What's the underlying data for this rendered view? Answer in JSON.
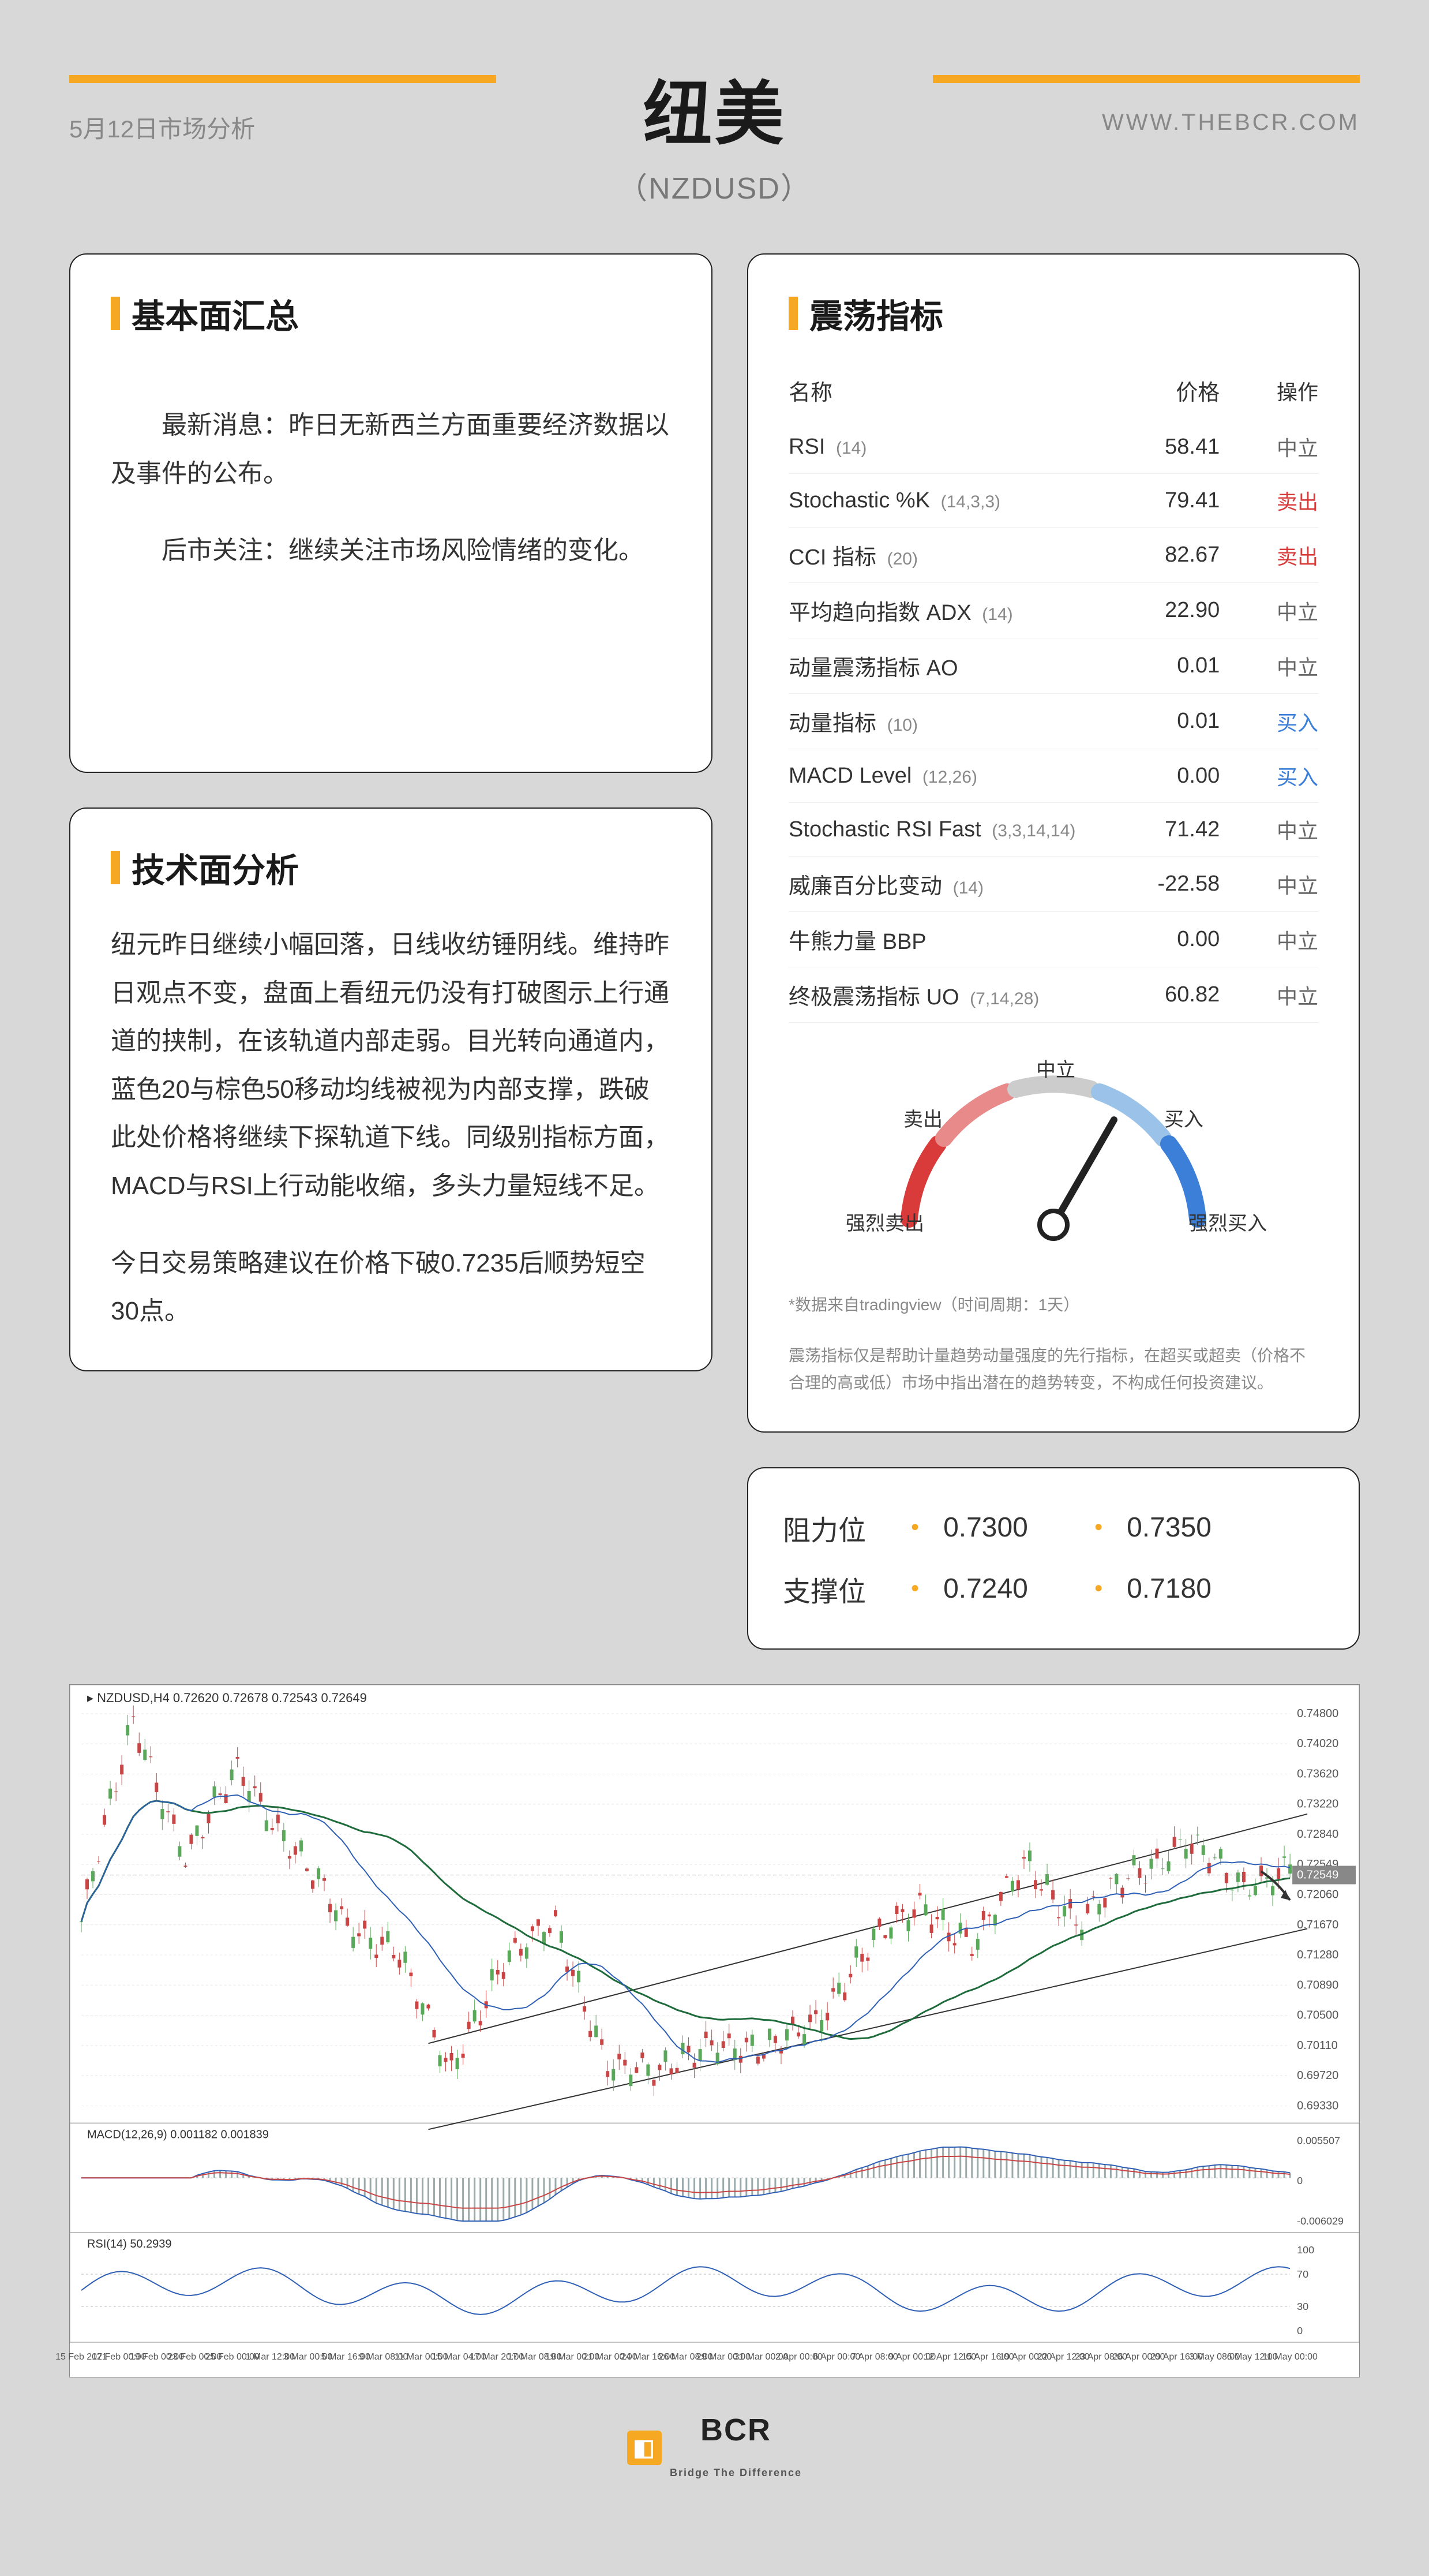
{
  "header": {
    "title": "纽美",
    "subtitle": "（NZDUSD）",
    "date": "5月12日市场分析",
    "url": "WWW.THEBCR.COM"
  },
  "fundamentals": {
    "title": "基本面汇总",
    "p1": "最新消息：昨日无新西兰方面重要经济数据以及事件的公布。",
    "p2": "后市关注：继续关注市场风险情绪的变化。"
  },
  "technical": {
    "title": "技术面分析",
    "p1": "纽元昨日继续小幅回落，日线收纺锤阴线。维持昨日观点不变，盘面上看纽元仍没有打破图示上行通道的挟制，在该轨道内部走弱。目光转向通道内，蓝色20与棕色50移动均线被视为内部支撑，跌破此处价格将继续下探轨道下线。同级别指标方面，MACD与RSI上行动能收缩，多头力量短线不足。",
    "p2": "今日交易策略建议在价格下破0.7235后顺势短空30点。"
  },
  "oscillators": {
    "title": "震荡指标",
    "headers": {
      "name": "名称",
      "price": "价格",
      "action": "操作"
    },
    "rows": [
      {
        "name": "RSI",
        "param": "(14)",
        "price": "58.41",
        "action": "中立",
        "color": "#666"
      },
      {
        "name": "Stochastic %K",
        "param": "(14,3,3)",
        "price": "79.41",
        "action": "卖出",
        "color": "#d93b3b"
      },
      {
        "name": "CCI 指标",
        "param": "(20)",
        "price": "82.67",
        "action": "卖出",
        "color": "#d93b3b"
      },
      {
        "name": "平均趋向指数 ADX",
        "param": "(14)",
        "price": "22.90",
        "action": "中立",
        "color": "#666"
      },
      {
        "name": "动量震荡指标 AO",
        "param": "",
        "price": "0.01",
        "action": "中立",
        "color": "#666"
      },
      {
        "name": "动量指标",
        "param": "(10)",
        "price": "0.01",
        "action": "买入",
        "color": "#3b7fd9"
      },
      {
        "name": "MACD Level",
        "param": "(12,26)",
        "price": "0.00",
        "action": "买入",
        "color": "#3b7fd9"
      },
      {
        "name": "Stochastic RSI Fast",
        "param": "(3,3,14,14)",
        "price": "71.42",
        "action": "中立",
        "color": "#666"
      },
      {
        "name": "威廉百分比变动",
        "param": "(14)",
        "price": "-22.58",
        "action": "中立",
        "color": "#666"
      },
      {
        "name": "牛熊力量 BBP",
        "param": "",
        "price": "0.00",
        "action": "中立",
        "color": "#666"
      },
      {
        "name": "终极震荡指标 UO",
        "param": "(7,14,28)",
        "price": "60.82",
        "action": "中立",
        "color": "#666"
      }
    ],
    "gauge": {
      "labels": {
        "strong_sell": "强烈卖出",
        "sell": "卖出",
        "neutral": "中立",
        "buy": "买入",
        "strong_buy": "强烈买入"
      },
      "needle_angle": 30,
      "colors": {
        "strong_sell": "#d93b3b",
        "sell": "#e88a8a",
        "neutral": "#cccccc",
        "buy": "#9bc2e8",
        "strong_buy": "#3b7fd9"
      }
    },
    "disclaimer1": "*数据来自tradingview（时间周期：1天）",
    "disclaimer2": "震荡指标仅是帮助计量趋势动量强度的先行指标，在超买或超卖（价格不合理的高或低）市场中指出潜在的趋势转变，不构成任何投资建议。"
  },
  "levels": {
    "resistance": {
      "label": "阻力位",
      "v1": "0.7300",
      "v2": "0.7350"
    },
    "support": {
      "label": "支撑位",
      "v1": "0.7240",
      "v2": "0.7180"
    }
  },
  "chart": {
    "symbol_label": "NZDUSD,H4 0.72620 0.72678 0.72543 0.72649",
    "macd_label": "MACD(12,26,9) 0.001182 0.001839",
    "rsi_label": "RSI(14) 50.2939",
    "y_labels": [
      "0.74800",
      "0.74020",
      "0.73620",
      "0.73220",
      "0.72840",
      "0.72549",
      "0.72060",
      "0.71670",
      "0.71280",
      "0.70890",
      "0.70500",
      "0.70110",
      "0.69720",
      "0.69330"
    ],
    "y_macd": [
      "0.005507",
      "0",
      "-0.006029"
    ],
    "y_rsi": [
      "100",
      "70",
      "30",
      "0"
    ],
    "x_labels": [
      "15 Feb 2021",
      "17 Feb 00:00",
      "19 Feb 00:00",
      "23 Feb 00:00",
      "25 Feb 00:00",
      "1 Mar 12:00",
      "3 Mar 00:00",
      "5 Mar 16:00",
      "9 Mar 08:00",
      "11 Mar 00:00",
      "15 Mar 04:00",
      "17 Mar 20:00",
      "17 Mar 08:00",
      "19 Mar 00:00",
      "21 Mar 00:00",
      "24 Mar 16:00",
      "26 Mar 08:00",
      "29 Mar 00:00",
      "31 Mar 00:00",
      "2 Apr 00:00",
      "6 Apr 00:00",
      "7 Apr 08:00",
      "9 Apr 00:00",
      "12 Apr 12:00",
      "15 Apr 16:00",
      "19 Apr 00:00",
      "22 Apr 12:00",
      "23 Apr 08:00",
      "26 Apr 00:00",
      "29 Apr 16:00",
      "3 May 08:00",
      "6 May 12:00",
      "11 May 00:00"
    ],
    "colors": {
      "candle_up": "#5aa85a",
      "candle_down": "#c94444",
      "ma20": "#2e5fb5",
      "ma50": "#1e6b3b",
      "channel": "#333333",
      "grid": "#e8e8e8",
      "bg": "#ffffff"
    },
    "price_badge": "0.72549"
  },
  "footer": {
    "brand": "BCR",
    "tagline": "Bridge The Difference"
  }
}
